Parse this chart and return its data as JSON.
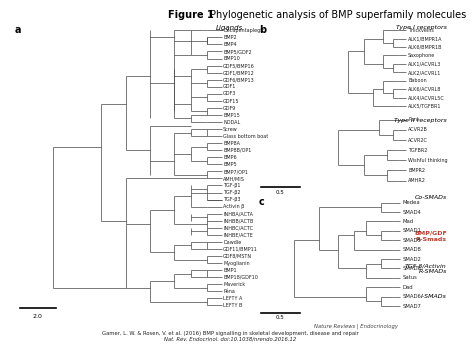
{
  "title_bold": "Figure 1",
  "title_regular": " Phylogenetic analysis of BMP superfamily molecules",
  "bg_color": "#dce8f0",
  "fig_bg": "#ffffff",
  "citation": "Gamer, L. W. & Rosen, V. et al. (2016) BMP signalling in skeletal development, disease and repair",
  "citation2": "Nat. Rev. Endocrinol. doi:10.1038/nrendo.2016.12",
  "journal": "Nature Reviews | Endocrinology",
  "panel_a_label": "a",
  "panel_b_label": "b",
  "panel_c_label": "c",
  "ligands_title": "Ligands",
  "type1_title": "Type I receptors",
  "type2_title": "Type II receptors",
  "co_smads_title": "Co-SMADs",
  "bmp_smads_title": "BMP/GDF\nR-Smads",
  "tgf_smads_title": "TGF-β/Activin\nR-SMADs",
  "i_smads_title": "I-SMADs",
  "panel_a_leaves": [
    "Decapentaplegic",
    "BMP2",
    "BMP4",
    "BMP5/GDF2",
    "BMP10",
    "GDF5/BMP16",
    "GDF1/BMP12",
    "GDF6/BMP13",
    "GDF1",
    "GDF3",
    "GDF15",
    "GDF9",
    "BMP15",
    "NODAL",
    "Screw",
    "Glass bottom boat",
    "BMP8A",
    "BMP8B/OP1",
    "BMP6",
    "BMP5",
    "BMP7/OP1",
    "AMH/MIS",
    "TGF-β1",
    "TGF-β2",
    "TGF-β3",
    "Activin β",
    "INHBA/ACTA",
    "INHBB/ACTB",
    "INHBC/ACTC",
    "INHBE/ACTE",
    "Dawdle",
    "GDF11/BMP11",
    "GDF8/MSTN",
    "Myoglianin",
    "BMP1",
    "BMP18/GDF10",
    "Maverick",
    "Péna",
    "LEFTY A",
    "LEFTY B"
  ],
  "panel_b_type1_leaves": [
    "Thickveins",
    "ALK1/BMPR1A",
    "ALK6/BMPR1B",
    "Saxophone",
    "ALK1/ACVRL3",
    "ALK2/ACVRL1",
    "Baboon",
    "ALK6/ACVRL8",
    "ALK4/ACVRL5C",
    "ALK5/TGFBR1"
  ],
  "panel_b_type2_leaves": [
    "Punt",
    "ACVR2B",
    "ACVR2C",
    "TGFBR2",
    "Wishful thinking",
    "BMPR2",
    "AMHR2"
  ],
  "panel_c_leaves": [
    "Medea",
    "SMAD4",
    "Mad",
    "SMAD1",
    "SMAD5",
    "SMAD8",
    "SMAD2",
    "SMAD3",
    "Satus",
    "Dad",
    "SMAD6",
    "SMAD7"
  ],
  "scale_a": "2.0",
  "scale_b": "0.5",
  "scale_c": "0.5"
}
